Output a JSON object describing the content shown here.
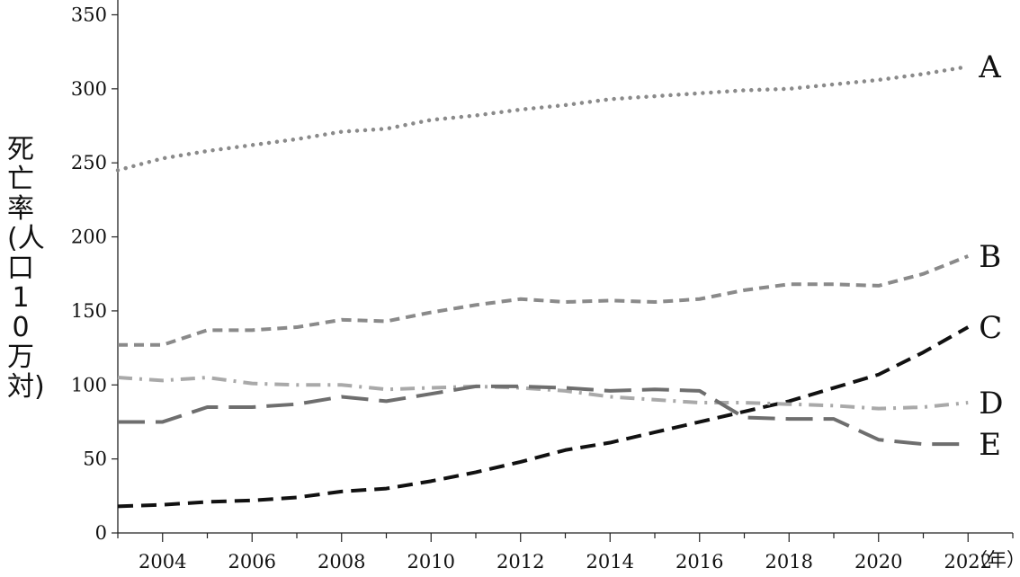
{
  "chart_data": {
    "type": "line",
    "ylabel": "死亡率(人口10万対)",
    "xunit": "（年）",
    "ylim": [
      0,
      360
    ],
    "xlim": [
      2003,
      2023
    ],
    "yticks": [
      0,
      50,
      100,
      150,
      200,
      250,
      300,
      350
    ],
    "xticks": [
      2004,
      2006,
      2008,
      2010,
      2012,
      2014,
      2016,
      2018,
      2020,
      2022
    ],
    "x": [
      2003,
      2004,
      2005,
      2006,
      2007,
      2008,
      2009,
      2010,
      2011,
      2012,
      2013,
      2014,
      2015,
      2016,
      2017,
      2018,
      2019,
      2020,
      2021,
      2022
    ],
    "series": [
      {
        "name": "A",
        "color": "#8a8a8a",
        "dash": "dotted",
        "values": [
          245,
          253,
          258,
          262,
          266,
          271,
          273,
          279,
          282,
          286,
          289,
          293,
          295,
          297,
          299,
          300,
          303,
          306,
          310,
          315
        ]
      },
      {
        "name": "B",
        "color": "#8a8a8a",
        "dash": "short-dash",
        "values": [
          127,
          127,
          137,
          137,
          139,
          144,
          143,
          149,
          154,
          158,
          156,
          157,
          156,
          158,
          164,
          168,
          168,
          167,
          175,
          187
        ]
      },
      {
        "name": "C",
        "color": "#111111",
        "dash": "dash",
        "values": [
          18,
          19,
          21,
          22,
          24,
          28,
          30,
          35,
          41,
          48,
          56,
          61,
          68,
          75,
          82,
          89,
          98,
          107,
          122,
          139
        ]
      },
      {
        "name": "D",
        "color": "#a9a9a9",
        "dash": "dash-dot",
        "values": [
          105,
          103,
          105,
          101,
          100,
          100,
          97,
          98,
          99,
          98,
          96,
          92,
          90,
          88,
          88,
          87,
          86,
          84,
          85,
          88
        ]
      },
      {
        "name": "E",
        "color": "#6e6e6e",
        "dash": "long-dash",
        "values": [
          75,
          75,
          85,
          85,
          87,
          92,
          89,
          94,
          99,
          99,
          98,
          96,
          97,
          96,
          78,
          77,
          77,
          63,
          60,
          60
        ]
      }
    ]
  }
}
